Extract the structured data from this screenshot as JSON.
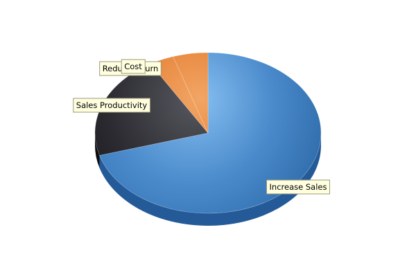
{
  "chart_data": {
    "type": "pie",
    "title": "",
    "legend": "none",
    "style": "3d",
    "start_angle_deg": 0,
    "direction": "clockwise",
    "slices": [
      {
        "name": "Increase Sales",
        "value": 70.5,
        "label": "Increase Sales",
        "colors": {
          "light": "#84bdf0",
          "mid": "#4a8acb",
          "dark": "#2f6cab",
          "side": "#245a97"
        }
      },
      {
        "name": "Sales Productivity",
        "value": 21.0,
        "label": "Sales Productivity",
        "colors": {
          "light": "#5a5a62",
          "mid": "#2a2a30",
          "dark": "#101014",
          "side": "#0c0c0e"
        }
      },
      {
        "name": "Reduce Churn",
        "value": 3.5,
        "label": "Reduce Churn",
        "colors": {
          "light": "#f2a565",
          "mid": "#e27b2d",
          "dark": "#b85a1a",
          "side": "#a04c14"
        }
      },
      {
        "name": "Cost",
        "value": 5.0,
        "label": "Cost",
        "colors": {
          "light": "#f2a565",
          "mid": "#e27b2d",
          "dark": "#b85a1a",
          "side": "#a04c14"
        }
      }
    ]
  }
}
